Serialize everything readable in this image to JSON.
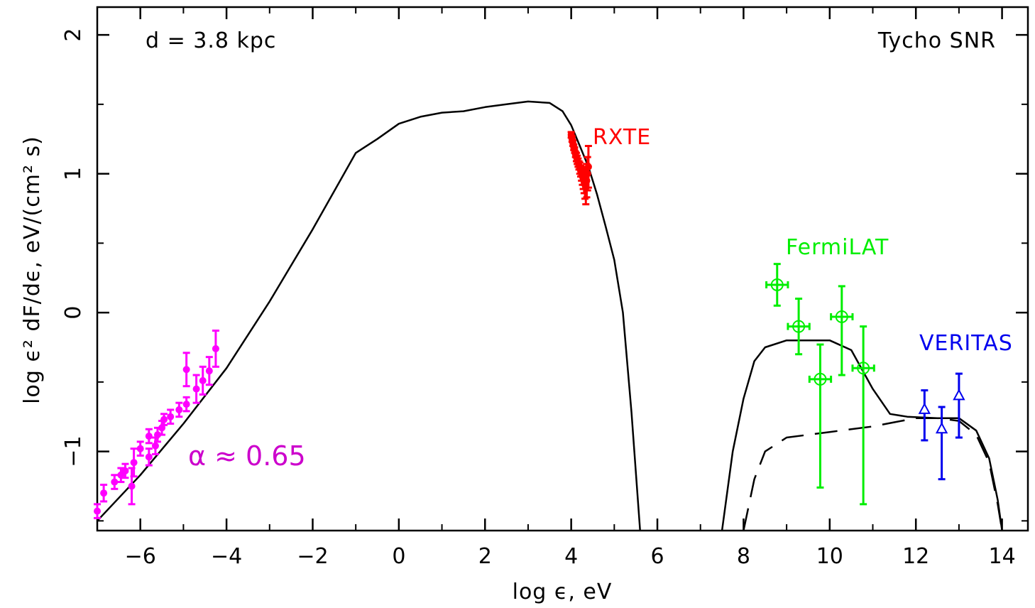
{
  "chart_data": {
    "type": "scatter",
    "xlabel": "log ϵ,  eV",
    "ylabel": "log ϵ² dF/dϵ,  eV/(cm² s)",
    "xlim": [
      -7,
      14.6
    ],
    "ylim": [
      -1.57,
      2.2
    ],
    "x_ticks": [
      -6,
      -4,
      -2,
      0,
      2,
      4,
      6,
      8,
      10,
      12,
      14
    ],
    "y_ticks": [
      -1,
      0,
      1,
      2
    ],
    "annotations": {
      "distance": "d = 3.8 kpc",
      "object": "Tycho SNR",
      "alpha": "α ≈ 0.65"
    },
    "colors": {
      "radio": "#ff00ff",
      "rxte": "#ff0000",
      "fermi": "#00ee00",
      "veritas": "#0000ee",
      "model": "#000000"
    },
    "series": [
      {
        "name": "RXTE",
        "marker": "filled-circle",
        "points": [
          [
            4.0,
            1.28
          ],
          [
            4.02,
            1.25
          ],
          [
            4.04,
            1.22
          ],
          [
            4.06,
            1.19
          ],
          [
            4.08,
            1.17
          ],
          [
            4.1,
            1.14
          ],
          [
            4.12,
            1.12
          ],
          [
            4.14,
            1.1
          ],
          [
            4.16,
            1.08
          ],
          [
            4.18,
            1.06
          ],
          [
            4.2,
            1.04
          ],
          [
            4.22,
            1.02
          ],
          [
            4.24,
            1.0
          ],
          [
            4.26,
            0.98
          ],
          [
            4.28,
            0.96
          ],
          [
            4.3,
            0.94
          ],
          [
            4.32,
            0.92
          ],
          [
            4.34,
            0.9
          ],
          [
            4.36,
            0.95
          ],
          [
            4.38,
            1.0
          ],
          [
            4.4,
            1.05
          ]
        ],
        "yerr": [
          0.02,
          0.02,
          0.02,
          0.02,
          0.02,
          0.02,
          0.03,
          0.03,
          0.03,
          0.03,
          0.04,
          0.04,
          0.05,
          0.06,
          0.07,
          0.08,
          0.1,
          0.12,
          0.12,
          0.12,
          0.15
        ]
      },
      {
        "name": "FermiLAT",
        "marker": "open-circle-cross",
        "points": [
          [
            8.78,
            0.2
          ],
          [
            9.28,
            -0.1
          ],
          [
            9.78,
            -0.48
          ],
          [
            10.28,
            -0.03
          ],
          [
            10.78,
            -0.4
          ]
        ],
        "xerr": [
          0.25,
          0.25,
          0.25,
          0.25,
          0.25
        ],
        "yerr_up": [
          0.15,
          0.2,
          0.25,
          0.22,
          0.3
        ],
        "yerr_down": [
          0.15,
          0.2,
          0.78,
          0.42,
          0.98
        ]
      },
      {
        "name": "VERITAS",
        "marker": "open-triangle",
        "points": [
          [
            12.2,
            -0.7
          ],
          [
            12.6,
            -0.84
          ],
          [
            13.0,
            -0.6
          ]
        ],
        "yerr_up": [
          0.14,
          0.16,
          0.16
        ],
        "yerr_down": [
          0.22,
          0.36,
          0.3
        ]
      },
      {
        "name": "",
        "marker": "filled-circle",
        "points": [
          [
            -7.0,
            -1.43
          ],
          [
            -6.85,
            -1.3
          ],
          [
            -6.6,
            -1.22
          ],
          [
            -6.45,
            -1.17
          ],
          [
            -6.35,
            -1.14
          ],
          [
            -6.2,
            -1.25
          ],
          [
            -6.15,
            -1.08
          ],
          [
            -6.0,
            -0.98
          ],
          [
            -5.8,
            -1.04
          ],
          [
            -5.8,
            -0.89
          ],
          [
            -5.65,
            -0.96
          ],
          [
            -5.6,
            -0.88
          ],
          [
            -5.5,
            -0.83
          ],
          [
            -5.45,
            -0.77
          ],
          [
            -5.3,
            -0.75
          ],
          [
            -5.1,
            -0.7
          ],
          [
            -4.93,
            -0.66
          ],
          [
            -4.93,
            -0.41
          ],
          [
            -4.7,
            -0.55
          ],
          [
            -4.55,
            -0.49
          ],
          [
            -4.4,
            -0.42
          ],
          [
            -4.25,
            -0.26
          ]
        ],
        "yerr": [
          0.05,
          0.06,
          0.05,
          0.05,
          0.05,
          0.13,
          0.1,
          0.05,
          0.06,
          0.05,
          0.06,
          0.05,
          0.05,
          0.04,
          0.05,
          0.05,
          0.05,
          0.12,
          0.1,
          0.1,
          0.1,
          0.13
        ]
      }
    ],
    "model_curves": [
      {
        "style": "solid",
        "points": [
          [
            -7.0,
            -1.5
          ],
          [
            -6.0,
            -1.17
          ],
          [
            -5.0,
            -0.8
          ],
          [
            -4.0,
            -0.4
          ],
          [
            -3.0,
            0.08
          ],
          [
            -2.0,
            0.6
          ],
          [
            -1.0,
            1.15
          ],
          [
            -0.5,
            1.25
          ],
          [
            0.0,
            1.36
          ],
          [
            0.5,
            1.41
          ],
          [
            1.0,
            1.44
          ],
          [
            1.5,
            1.45
          ],
          [
            2.0,
            1.48
          ],
          [
            2.5,
            1.5
          ],
          [
            3.0,
            1.52
          ],
          [
            3.5,
            1.51
          ],
          [
            3.8,
            1.45
          ],
          [
            4.0,
            1.35
          ],
          [
            4.2,
            1.2
          ],
          [
            4.4,
            1.05
          ],
          [
            4.6,
            0.85
          ],
          [
            4.8,
            0.62
          ],
          [
            5.0,
            0.38
          ],
          [
            5.2,
            0.0
          ],
          [
            5.4,
            -0.72
          ],
          [
            5.6,
            -1.57
          ]
        ]
      },
      {
        "style": "solid",
        "points": [
          [
            7.5,
            -1.57
          ],
          [
            7.75,
            -1.0
          ],
          [
            8.0,
            -0.62
          ],
          [
            8.25,
            -0.35
          ],
          [
            8.5,
            -0.25
          ],
          [
            9.0,
            -0.2
          ],
          [
            9.5,
            -0.2
          ],
          [
            10.0,
            -0.2
          ],
          [
            10.5,
            -0.27
          ],
          [
            11.0,
            -0.55
          ],
          [
            11.4,
            -0.73
          ],
          [
            11.8,
            -0.75
          ],
          [
            12.5,
            -0.76
          ],
          [
            13.0,
            -0.76
          ],
          [
            13.4,
            -0.85
          ],
          [
            13.7,
            -1.05
          ],
          [
            13.9,
            -1.35
          ],
          [
            14.0,
            -1.57
          ]
        ]
      },
      {
        "style": "dashed",
        "points": [
          [
            8.0,
            -1.57
          ],
          [
            8.25,
            -1.2
          ],
          [
            8.5,
            -1.0
          ],
          [
            9.0,
            -0.9
          ],
          [
            9.5,
            -0.88
          ],
          [
            10.0,
            -0.86
          ],
          [
            10.5,
            -0.84
          ],
          [
            11.0,
            -0.82
          ],
          [
            11.5,
            -0.79
          ],
          [
            12.0,
            -0.76
          ],
          [
            12.5,
            -0.76
          ],
          [
            13.0,
            -0.78
          ],
          [
            13.4,
            -0.88
          ],
          [
            13.7,
            -1.08
          ],
          [
            13.9,
            -1.38
          ],
          [
            14.0,
            -1.57
          ]
        ]
      }
    ]
  }
}
